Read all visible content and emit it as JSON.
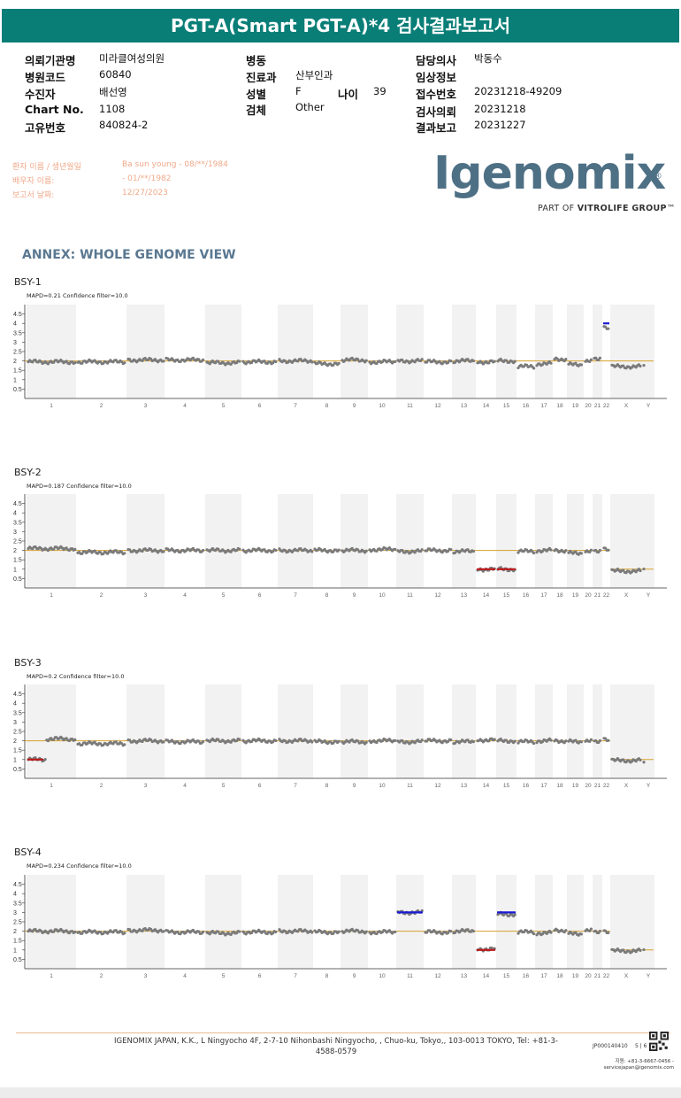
{
  "header": {
    "title": "PGT-A(Smart PGT-A)*4 검사결과보고서"
  },
  "info": {
    "hospital_label": "의뢰기관명",
    "hospital_value": "미라클여성의원",
    "hospital_code_label": "병원코드",
    "hospital_code_value": "60840",
    "examinee_label": "수진자",
    "examinee_value": "배선영",
    "chart_label": "Chart No.",
    "chart_value": "1108",
    "unique_label": "고유번호",
    "unique_value": "840824-2",
    "ward_label": "병동",
    "ward_value": "",
    "dept_label": "진료과",
    "dept_value": "산부인과",
    "sex_label": "성별",
    "sex_value": "F",
    "age_label": "나이",
    "age_value": "39",
    "specimen_label": "검체",
    "specimen_value": "Other",
    "doctor_label": "담당의사",
    "doctor_value": "박동수",
    "clinical_label": "임상정보",
    "clinical_value": "",
    "receipt_label": "접수번호",
    "receipt_value": "20231218-49209",
    "request_label": "검사의뢰",
    "request_value": "20231218",
    "report_label": "결과보고",
    "report_value": "20231227"
  },
  "patient": {
    "name_label": "환자 이름 / 생년월일",
    "name_value": "Ba sun young - 08/**/1984",
    "partner_label": "배우자 이름:",
    "partner_value": "- 01/**/1982",
    "date_label": "보고서 날짜:",
    "date_value": "12/27/2023"
  },
  "logo": {
    "name": "Igenomix",
    "reg": "®",
    "sub_prefix": "PART OF ",
    "sub_brand": "VITROLIFE GROUP",
    "sub_tm": "™"
  },
  "annex_title": "ANNEX: WHOLE GENOME VIEW",
  "chart_data": [
    {
      "type": "scatter",
      "title": "BSY-1",
      "subtitle": "MAPD=0.21 Confidence filter=10.0",
      "yticks": [
        "4.5",
        "4",
        "3.5",
        "3",
        "2.5",
        "2",
        "1.5",
        "1",
        "0.5"
      ],
      "ylim": [
        0,
        5
      ],
      "baseline": 2,
      "chromosomes": [
        "1",
        "2",
        "3",
        "4",
        "5",
        "6",
        "7",
        "8",
        "9",
        "10",
        "11",
        "12",
        "13",
        "14",
        "15",
        "16",
        "17",
        "18",
        "19",
        "20",
        "21",
        "22",
        "X",
        "Y"
      ],
      "copy_number": {
        "1": 1.95,
        "2": 1.95,
        "3": 2.05,
        "4": 2.05,
        "5": 1.9,
        "6": 1.95,
        "7": 2.0,
        "8": 1.85,
        "9": 2.05,
        "10": 1.95,
        "11": 2.0,
        "12": 1.95,
        "13": 2.0,
        "14": 1.95,
        "15": 2.0,
        "16": 1.7,
        "17": 1.85,
        "18": 2.1,
        "19": 1.8,
        "20": 2.0,
        "21": 2.15,
        "22": 3.75,
        "X": 1.7,
        "Y": 1.75
      },
      "calls": [
        {
          "chromosome": "22",
          "value": 4,
          "color": "#1a1ad6"
        }
      ],
      "line_color": "#d7a12c"
    },
    {
      "type": "scatter",
      "title": "BSY-2",
      "subtitle": "MAPD=0.187 Confidence filter=10.0",
      "yticks": [
        "4.5",
        "4",
        "3.5",
        "3",
        "2.5",
        "2",
        "1.5",
        "1",
        "0.5"
      ],
      "ylim": [
        0,
        5
      ],
      "baseline": 2,
      "baseline_xy": 1,
      "chromosomes": [
        "1",
        "2",
        "3",
        "4",
        "5",
        "6",
        "7",
        "8",
        "9",
        "10",
        "11",
        "12",
        "13",
        "14",
        "15",
        "16",
        "17",
        "18",
        "19",
        "20",
        "21",
        "22",
        "X",
        "Y"
      ],
      "copy_number": {
        "1": 2.1,
        "2": 1.9,
        "3": 2.0,
        "4": 2.0,
        "5": 2.0,
        "6": 2.0,
        "7": 2.0,
        "8": 2.0,
        "9": 2.0,
        "10": 2.05,
        "11": 1.95,
        "12": 2.0,
        "13": 1.95,
        "14": 1.0,
        "15": 1.0,
        "16": 1.95,
        "17": 2.0,
        "18": 2.0,
        "19": 1.85,
        "20": 1.95,
        "21": 2.0,
        "22": 2.05,
        "X": 0.9,
        "Y": 1.0
      },
      "calls": [
        {
          "chromosome": "14",
          "value": 1,
          "color": "#c0181a"
        },
        {
          "chromosome": "15",
          "value": 1,
          "color": "#c0181a"
        }
      ],
      "line_color": "#d7a12c"
    },
    {
      "type": "scatter",
      "title": "BSY-3",
      "subtitle": "MAPD=0.2 Confidence filter=10.0",
      "yticks": [
        "4.5",
        "4",
        "3.5",
        "3",
        "2.5",
        "2",
        "1.5",
        "1",
        "0.5"
      ],
      "ylim": [
        0,
        5
      ],
      "baseline": 2,
      "baseline_xy": 1,
      "chromosomes": [
        "1",
        "2",
        "3",
        "4",
        "5",
        "6",
        "7",
        "8",
        "9",
        "10",
        "11",
        "12",
        "13",
        "14",
        "15",
        "16",
        "17",
        "18",
        "19",
        "20",
        "21",
        "22",
        "X",
        "Y"
      ],
      "copy_number": {
        "1": 1.0,
        "2": 1.85,
        "3": 2.0,
        "4": 1.95,
        "5": 2.0,
        "6": 2.0,
        "7": 2.0,
        "8": 1.95,
        "9": 1.95,
        "10": 2.0,
        "11": 1.95,
        "12": 2.0,
        "13": 1.95,
        "14": 2.05,
        "15": 2.0,
        "16": 1.95,
        "17": 2.0,
        "18": 2.0,
        "19": 1.95,
        "20": 2.0,
        "21": 2.0,
        "22": 2.05,
        "X": 0.95,
        "Y": 0.85
      },
      "calls": [
        {
          "chromosome": "1",
          "value": 1,
          "color": "#c0181a",
          "partial": true
        }
      ],
      "line_color": "#d7a12c"
    },
    {
      "type": "scatter",
      "title": "BSY-4",
      "subtitle": "MAPD=0.234 Confidence filter=10.0",
      "yticks": [
        "4.5",
        "4",
        "3.5",
        "3",
        "2.5",
        "2",
        "1.5",
        "1",
        "0.5"
      ],
      "ylim": [
        0,
        5
      ],
      "baseline": 2,
      "baseline_xy": 1,
      "chromosomes": [
        "1",
        "2",
        "3",
        "4",
        "5",
        "6",
        "7",
        "8",
        "9",
        "10",
        "11",
        "12",
        "13",
        "14",
        "15",
        "16",
        "17",
        "18",
        "19",
        "20",
        "21",
        "22",
        "X",
        "Y"
      ],
      "copy_number": {
        "1": 2.0,
        "2": 1.95,
        "3": 2.05,
        "4": 1.95,
        "5": 1.9,
        "6": 1.95,
        "7": 2.0,
        "8": 1.95,
        "9": 2.0,
        "10": 1.95,
        "11": 3.0,
        "12": 1.95,
        "13": 2.0,
        "14": 1.05,
        "15": 2.9,
        "16": 1.95,
        "17": 1.9,
        "18": 2.05,
        "19": 1.85,
        "20": 2.05,
        "21": 2.0,
        "22": 1.95,
        "X": 0.95,
        "Y": 1.0
      },
      "calls": [
        {
          "chromosome": "11",
          "value": 3,
          "color": "#1a1ad6"
        },
        {
          "chromosome": "14",
          "value": 1,
          "color": "#c0181a"
        },
        {
          "chromosome": "15",
          "value": 3,
          "color": "#1a1ad6"
        }
      ],
      "line_color": "#d7a12c"
    }
  ],
  "footer": {
    "address": "IGENOMIX JAPAN, K.K., L Ningyocho 4F, 2-7-10 Nihonbashi Ningyocho, , Chuo-ku, Tokyo,, 103-0013 TOKYO, Tel: +81-3-4588-0579",
    "doc_id": "JP000140410",
    "page": "5 | 6",
    "contact": "지원: +81-3-6667-0456 - servicejapan@igenomix.com"
  }
}
